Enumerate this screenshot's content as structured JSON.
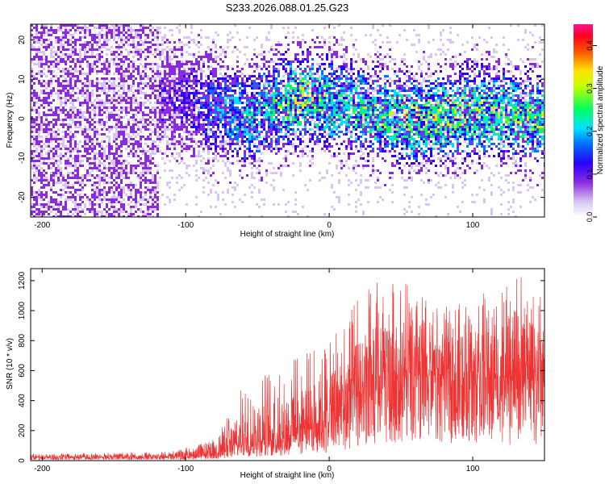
{
  "title": "S233.2026.088.01.25.G23",
  "chart_data": [
    {
      "type": "heatmap",
      "xlabel": "Height of straight line (km)",
      "ylabel": "Frequency (Hz)",
      "xlim": [
        -208,
        150
      ],
      "ylim": [
        -25,
        24
      ],
      "xticks": [
        -200,
        -100,
        0,
        100
      ],
      "yticks": [
        -20,
        -10,
        0,
        10,
        20
      ],
      "colorbar": {
        "label": "Normalized spectral amplitude",
        "range": [
          0,
          0.45
        ],
        "ticks": [
          0.0,
          0.1,
          0.2,
          0.3,
          0.4
        ],
        "colormap": [
          "#ffffff",
          "#d8c6f2",
          "#8a2be2",
          "#0000ff",
          "#00bfff",
          "#00ffff",
          "#00ff00",
          "#ffff00",
          "#ff8c00",
          "#ff0000",
          "#ff1493"
        ]
      },
      "band_center_hz": [
        {
          "x": -208,
          "y": 6
        },
        {
          "x": -100,
          "y": 5
        },
        {
          "x": -60,
          "y": 0
        },
        {
          "x": -20,
          "y": 6
        },
        {
          "x": 20,
          "y": 2
        },
        {
          "x": 60,
          "y": 0
        },
        {
          "x": 100,
          "y": 2
        },
        {
          "x": 150,
          "y": 0
        }
      ],
      "activity": [
        {
          "x": -208,
          "a": 0.18
        },
        {
          "x": -125,
          "a": 0.18
        },
        {
          "x": -100,
          "a": 0.25
        },
        {
          "x": -80,
          "a": 0.45
        },
        {
          "x": -50,
          "a": 0.6
        },
        {
          "x": -20,
          "a": 0.85
        },
        {
          "x": 0,
          "a": 0.65
        },
        {
          "x": 30,
          "a": 0.7
        },
        {
          "x": 60,
          "a": 0.8
        },
        {
          "x": 100,
          "a": 0.75
        },
        {
          "x": 150,
          "a": 0.75
        }
      ]
    },
    {
      "type": "line",
      "xlabel": "Height of straight line (km)",
      "ylabel": "SNR (10 * v/v)",
      "xlim": [
        -208,
        150
      ],
      "ylim": [
        0,
        1280
      ],
      "xticks": [
        -200,
        -100,
        0,
        100
      ],
      "yticks": [
        0,
        200,
        400,
        600,
        800,
        1000,
        1200
      ],
      "color": "#ee3333",
      "series": [
        {
          "envelope_mid": [
            {
              "x": -208,
              "y": 20
            },
            {
              "x": -110,
              "y": 25
            },
            {
              "x": -80,
              "y": 45
            },
            {
              "x": -60,
              "y": 110
            },
            {
              "x": -30,
              "y": 160
            },
            {
              "x": 0,
              "y": 280
            },
            {
              "x": 20,
              "y": 420
            },
            {
              "x": 50,
              "y": 540
            },
            {
              "x": 80,
              "y": 570
            },
            {
              "x": 100,
              "y": 540
            },
            {
              "x": 130,
              "y": 520
            },
            {
              "x": 150,
              "y": 500
            }
          ],
          "envelope_peak": [
            {
              "x": -208,
              "y": 45
            },
            {
              "x": -110,
              "y": 60
            },
            {
              "x": -80,
              "y": 140
            },
            {
              "x": -60,
              "y": 500
            },
            {
              "x": -30,
              "y": 650
            },
            {
              "x": 0,
              "y": 800
            },
            {
              "x": 30,
              "y": 1230
            },
            {
              "x": 50,
              "y": 1200
            },
            {
              "x": 80,
              "y": 1020
            },
            {
              "x": 110,
              "y": 1130
            },
            {
              "x": 135,
              "y": 1240
            },
            {
              "x": 150,
              "y": 1180
            }
          ]
        }
      ]
    }
  ]
}
